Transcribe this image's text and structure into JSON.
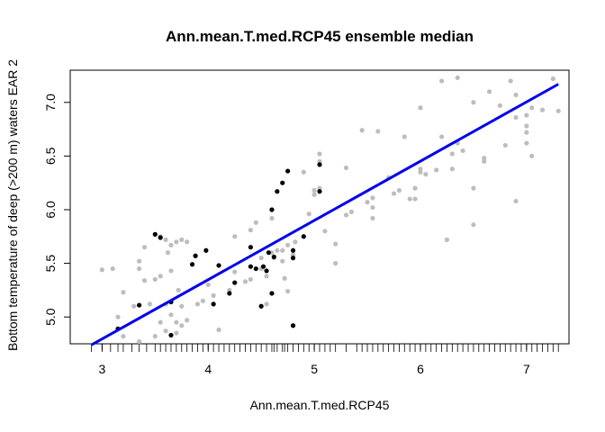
{
  "chart_data": {
    "type": "scatter",
    "title": "Ann.mean.T.med.RCP45 ensemble median",
    "xlabel": "Ann.mean.T.med.RCP45",
    "ylabel": "Bottom temperature of deep (>200 m) waters EAR 2",
    "xlim": [
      2.7,
      7.4
    ],
    "ylim": [
      4.75,
      7.3
    ],
    "xticks": [
      "3",
      "4",
      "5",
      "6",
      "7"
    ],
    "yticks": [
      "5.0",
      "5.5",
      "6.0",
      "6.5",
      "7.0"
    ],
    "grid": false,
    "legend": "none",
    "colors": {
      "grey": "#bdbdbd",
      "black": "#000000",
      "fit": "#0000ee"
    },
    "series": [
      {
        "color": "grey",
        "points": [
          [
            3.0,
            5.44
          ],
          [
            3.1,
            5.45
          ],
          [
            3.2,
            5.23
          ],
          [
            3.15,
            5.0
          ],
          [
            3.2,
            4.82
          ],
          [
            3.3,
            5.1
          ],
          [
            3.35,
            5.45
          ],
          [
            3.35,
            5.52
          ],
          [
            3.35,
            4.77
          ],
          [
            3.4,
            5.34
          ],
          [
            3.4,
            5.65
          ],
          [
            3.45,
            5.12
          ],
          [
            3.5,
            5.35
          ],
          [
            3.5,
            4.82
          ],
          [
            3.55,
            5.38
          ],
          [
            3.55,
            5.75
          ],
          [
            3.55,
            4.95
          ],
          [
            3.6,
            5.72
          ],
          [
            3.6,
            5.12
          ],
          [
            3.6,
            4.87
          ],
          [
            3.62,
            5.6
          ],
          [
            3.65,
            5.67
          ],
          [
            3.65,
            5.43
          ],
          [
            3.65,
            5.02
          ],
          [
            3.7,
            5.7
          ],
          [
            3.7,
            4.95
          ],
          [
            3.7,
            4.85
          ],
          [
            3.72,
            5.25
          ],
          [
            3.75,
            5.72
          ],
          [
            3.75,
            5.1
          ],
          [
            3.75,
            4.92
          ],
          [
            3.8,
            5.7
          ],
          [
            3.8,
            4.97
          ],
          [
            3.9,
            5.12
          ],
          [
            3.95,
            5.15
          ],
          [
            4.0,
            5.3
          ],
          [
            4.05,
            5.2
          ],
          [
            4.1,
            4.88
          ],
          [
            4.2,
            5.25
          ],
          [
            4.25,
            5.42
          ],
          [
            4.25,
            5.75
          ],
          [
            4.35,
            5.33
          ],
          [
            4.4,
            5.81
          ],
          [
            4.4,
            5.35
          ],
          [
            4.45,
            5.88
          ],
          [
            4.5,
            5.55
          ],
          [
            4.5,
            5.45
          ],
          [
            4.55,
            5.38
          ],
          [
            4.55,
            5.12
          ],
          [
            4.6,
            5.92
          ],
          [
            4.6,
            5.6
          ],
          [
            4.62,
            5.55
          ],
          [
            4.65,
            5.62
          ],
          [
            4.7,
            5.62
          ],
          [
            4.7,
            5.52
          ],
          [
            4.72,
            5.36
          ],
          [
            4.75,
            5.24
          ],
          [
            4.75,
            5.67
          ],
          [
            4.8,
            5.58
          ],
          [
            4.82,
            5.7
          ],
          [
            4.9,
            6.35
          ],
          [
            4.95,
            5.96
          ],
          [
            5.0,
            6.14
          ],
          [
            5.0,
            6.18
          ],
          [
            5.05,
            6.2
          ],
          [
            5.05,
            6.45
          ],
          [
            5.05,
            6.52
          ],
          [
            5.1,
            5.8
          ],
          [
            5.2,
            5.68
          ],
          [
            5.2,
            5.5
          ],
          [
            5.3,
            6.39
          ],
          [
            5.3,
            5.95
          ],
          [
            5.35,
            5.98
          ],
          [
            5.45,
            6.74
          ],
          [
            5.5,
            6.07
          ],
          [
            5.55,
            6.11
          ],
          [
            5.55,
            6.02
          ],
          [
            5.55,
            5.92
          ],
          [
            5.6,
            6.73
          ],
          [
            5.7,
            6.3
          ],
          [
            5.75,
            6.15
          ],
          [
            5.8,
            6.18
          ],
          [
            5.85,
            6.68
          ],
          [
            5.9,
            6.1
          ],
          [
            5.95,
            6.1
          ],
          [
            5.95,
            6.2
          ],
          [
            6.0,
            6.95
          ],
          [
            6.0,
            6.38
          ],
          [
            6.0,
            6.35
          ],
          [
            6.05,
            6.33
          ],
          [
            6.15,
            6.37
          ],
          [
            6.2,
            7.2
          ],
          [
            6.2,
            6.68
          ],
          [
            6.25,
            5.72
          ],
          [
            6.3,
            6.38
          ],
          [
            6.3,
            6.52
          ],
          [
            6.35,
            7.23
          ],
          [
            6.35,
            6.62
          ],
          [
            6.4,
            6.55
          ],
          [
            6.5,
            6.2
          ],
          [
            6.5,
            5.86
          ],
          [
            6.5,
            7.0
          ],
          [
            6.6,
            6.48
          ],
          [
            6.6,
            6.45
          ],
          [
            6.65,
            7.1
          ],
          [
            6.75,
            6.97
          ],
          [
            6.8,
            6.6
          ],
          [
            6.85,
            7.2
          ],
          [
            6.9,
            6.08
          ],
          [
            6.9,
            6.86
          ],
          [
            6.9,
            7.07
          ],
          [
            7.0,
            6.62
          ],
          [
            7.0,
            6.72
          ],
          [
            7.0,
            6.78
          ],
          [
            7.0,
            6.88
          ],
          [
            7.05,
            6.95
          ],
          [
            7.05,
            6.5
          ],
          [
            7.15,
            6.93
          ],
          [
            7.25,
            7.22
          ],
          [
            7.3,
            6.92
          ]
        ]
      },
      {
        "color": "black",
        "points": [
          [
            3.15,
            4.89
          ],
          [
            3.35,
            5.11
          ],
          [
            3.5,
            5.77
          ],
          [
            3.55,
            5.74
          ],
          [
            3.65,
            5.14
          ],
          [
            3.65,
            4.83
          ],
          [
            3.85,
            5.49
          ],
          [
            3.88,
            5.57
          ],
          [
            3.98,
            5.62
          ],
          [
            4.05,
            5.12
          ],
          [
            4.1,
            5.48
          ],
          [
            4.2,
            5.22
          ],
          [
            4.25,
            5.32
          ],
          [
            4.4,
            5.65
          ],
          [
            4.4,
            5.47
          ],
          [
            4.45,
            5.45
          ],
          [
            4.5,
            5.1
          ],
          [
            4.52,
            5.47
          ],
          [
            4.55,
            5.43
          ],
          [
            4.57,
            5.6
          ],
          [
            4.6,
            5.22
          ],
          [
            4.6,
            6.0
          ],
          [
            4.62,
            5.56
          ],
          [
            4.65,
            6.17
          ],
          [
            4.7,
            6.25
          ],
          [
            4.75,
            6.36
          ],
          [
            4.8,
            5.62
          ],
          [
            4.8,
            4.92
          ],
          [
            4.8,
            5.55
          ],
          [
            4.9,
            5.75
          ],
          [
            5.05,
            6.42
          ],
          [
            5.05,
            6.17
          ]
        ]
      }
    ],
    "fit_line": {
      "x": [
        2.9,
        7.3
      ],
      "y": [
        4.74,
        7.17
      ],
      "color": "fit"
    },
    "rug_x": [
      2.9,
      3.0,
      3.08,
      3.15,
      3.2,
      3.28,
      3.35,
      3.42,
      3.5,
      3.55,
      3.6,
      3.65,
      3.7,
      3.75,
      3.8,
      3.85,
      3.9,
      3.95,
      4.0,
      4.05,
      4.1,
      4.15,
      4.2,
      4.25,
      4.3,
      4.35,
      4.4,
      4.45,
      4.5,
      4.55,
      4.6,
      4.62,
      4.65,
      4.7,
      4.72,
      4.75,
      4.8,
      4.85,
      4.9,
      4.95,
      5.0,
      5.05,
      5.1,
      5.15,
      5.2,
      5.3,
      5.4,
      5.45,
      5.5,
      5.55,
      5.6,
      5.65,
      5.7,
      5.75,
      5.8,
      5.85,
      5.9,
      5.95,
      6.0,
      6.05,
      6.1,
      6.15,
      6.2,
      6.25,
      6.3,
      6.35,
      6.4,
      6.45,
      6.5,
      6.55,
      6.6,
      6.65,
      6.7,
      6.75,
      6.8,
      6.85,
      6.9,
      6.95,
      7.0,
      7.05,
      7.1,
      7.15,
      7.2,
      7.25,
      7.3
    ]
  }
}
